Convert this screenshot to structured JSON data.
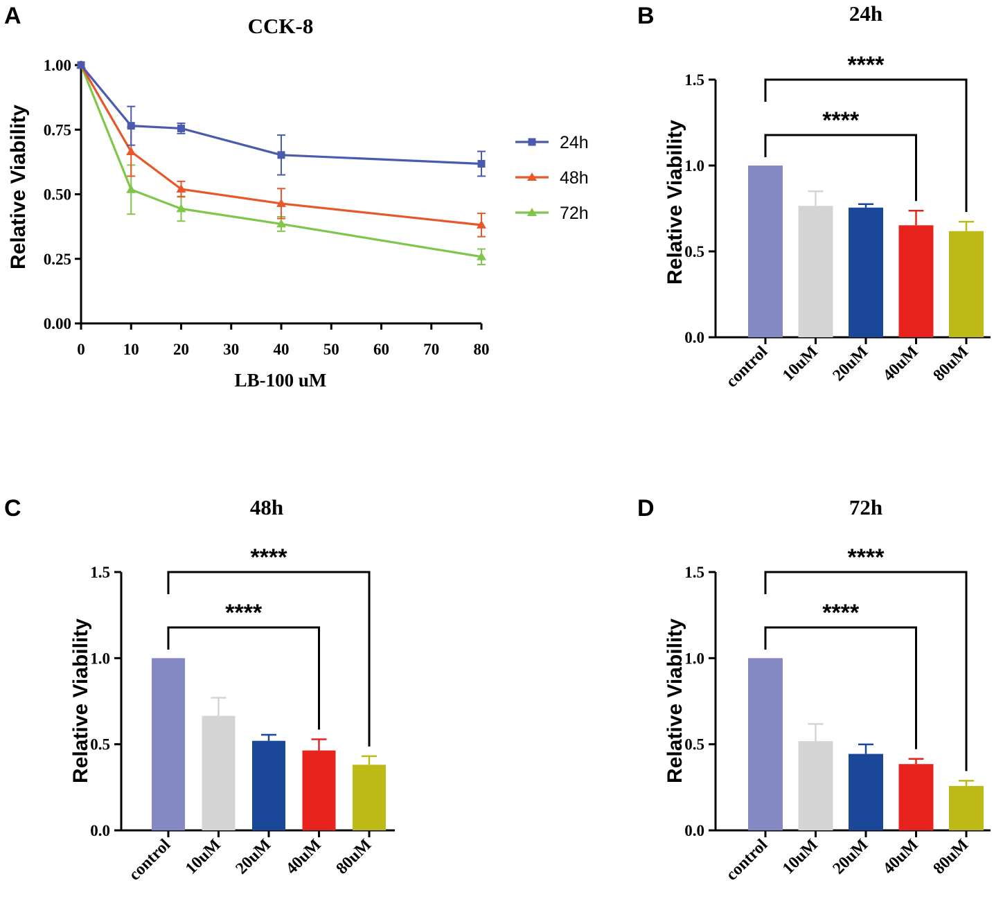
{
  "figure": {
    "panels": [
      {
        "letter": "A",
        "title": "CCK-8"
      },
      {
        "letter": "B",
        "title": "24h"
      },
      {
        "letter": "C",
        "title": "48h"
      },
      {
        "letter": "D",
        "title": "72h"
      }
    ]
  },
  "chart_data": [
    {
      "type": "line",
      "title": "CCK-8",
      "xlabel": "LB-100 uM",
      "ylabel": "Relative Viability",
      "xlim": [
        0,
        80
      ],
      "ylim": [
        0,
        1.0
      ],
      "x_ticks": [
        "0",
        "10",
        "20",
        "30",
        "40",
        "50",
        "60",
        "70",
        "80"
      ],
      "y_ticks": [
        "0.00",
        "0.25",
        "0.50",
        "0.75",
        "1.00"
      ],
      "x": [
        0,
        10,
        20,
        40,
        80
      ],
      "legend_position": "right",
      "series": [
        {
          "name": "24h",
          "color": "#4a5aae",
          "marker": "square",
          "values": [
            1.0,
            0.765,
            0.755,
            0.652,
            0.618
          ],
          "errors": [
            0,
            0.075,
            0.02,
            0.077,
            0.048
          ]
        },
        {
          "name": "48h",
          "color": "#e8562a",
          "marker": "triangle",
          "values": [
            1.0,
            0.665,
            0.52,
            0.464,
            0.381
          ],
          "errors": [
            0,
            0.095,
            0.03,
            0.058,
            0.045
          ]
        },
        {
          "name": "72h",
          "color": "#7fc64a",
          "marker": "triangle",
          "values": [
            1.0,
            0.518,
            0.444,
            0.385,
            0.258
          ],
          "errors": [
            0,
            0.095,
            0.048,
            0.028,
            0.03
          ]
        }
      ]
    },
    {
      "type": "bar",
      "title": "24h",
      "ylabel": "Relative Viability",
      "ylim": [
        0,
        1.5
      ],
      "y_ticks": [
        "0.0",
        "0.5",
        "1.0",
        "1.5"
      ],
      "categories": [
        "control",
        "10uM",
        "20uM",
        "40uM",
        "80uM"
      ],
      "values": [
        1.0,
        0.765,
        0.755,
        0.652,
        0.618
      ],
      "errors": [
        0,
        0.085,
        0.02,
        0.085,
        0.055
      ],
      "colors": [
        "#8489c4",
        "#d4d4d4",
        "#1a4798",
        "#e8231e",
        "#bdba18"
      ],
      "significance": [
        {
          "from": 0,
          "to": 3,
          "label": "****"
        },
        {
          "from": 0,
          "to": 4,
          "label": "****"
        }
      ]
    },
    {
      "type": "bar",
      "title": "48h",
      "ylabel": "Relative Viability",
      "ylim": [
        0,
        1.5
      ],
      "y_ticks": [
        "0.0",
        "0.5",
        "1.0",
        "1.5"
      ],
      "categories": [
        "control",
        "10uM",
        "20uM",
        "40uM",
        "80uM"
      ],
      "values": [
        1.0,
        0.665,
        0.52,
        0.464,
        0.381
      ],
      "errors": [
        0,
        0.105,
        0.035,
        0.065,
        0.05
      ],
      "colors": [
        "#8489c4",
        "#d4d4d4",
        "#1a4798",
        "#e8231e",
        "#bdba18"
      ],
      "significance": [
        {
          "from": 0,
          "to": 3,
          "label": "****"
        },
        {
          "from": 0,
          "to": 4,
          "label": "****"
        }
      ]
    },
    {
      "type": "bar",
      "title": "72h",
      "ylabel": "Relative Viability",
      "ylim": [
        0,
        1.5
      ],
      "y_ticks": [
        "0.0",
        "0.5",
        "1.0",
        "1.5"
      ],
      "categories": [
        "control",
        "10uM",
        "20uM",
        "40uM",
        "80uM"
      ],
      "values": [
        1.0,
        0.518,
        0.444,
        0.385,
        0.258
      ],
      "errors": [
        0,
        0.1,
        0.055,
        0.03,
        0.03
      ],
      "colors": [
        "#8489c4",
        "#d4d4d4",
        "#1a4798",
        "#e8231e",
        "#bdba18"
      ],
      "significance": [
        {
          "from": 0,
          "to": 3,
          "label": "****"
        },
        {
          "from": 0,
          "to": 4,
          "label": "****"
        }
      ]
    }
  ]
}
